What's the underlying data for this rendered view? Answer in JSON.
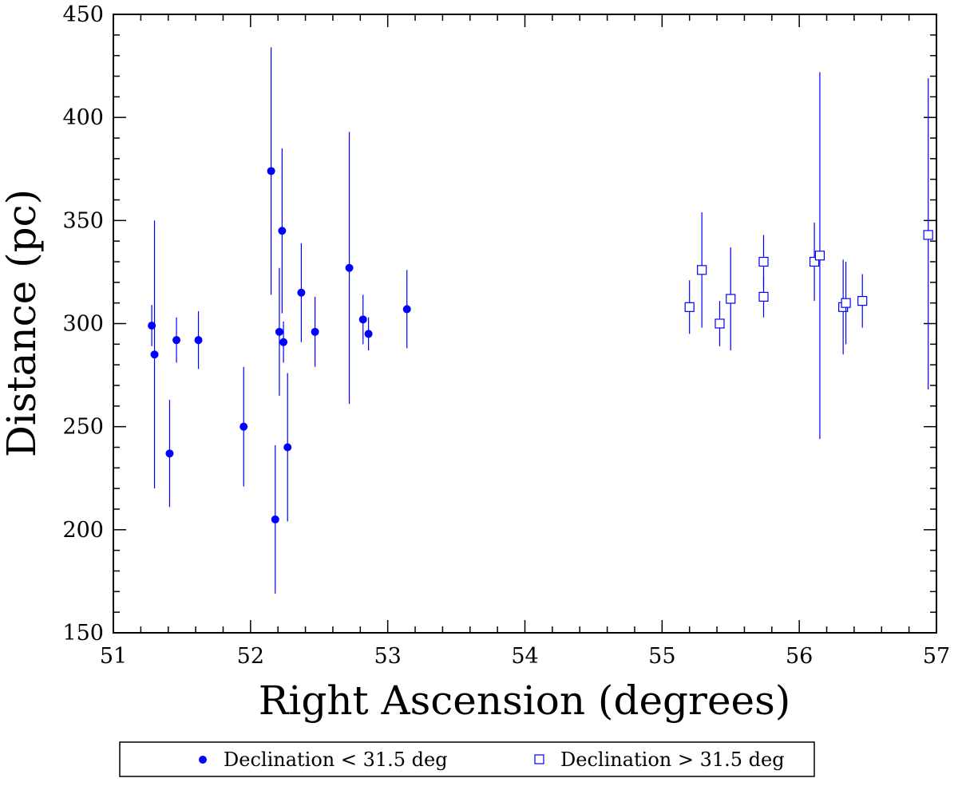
{
  "chart_data": {
    "type": "scatter",
    "title": "",
    "xlabel": "Right Ascension (degrees)",
    "ylabel": "Distance (pc)",
    "xlim": [
      51,
      57
    ],
    "ylim": [
      150,
      450
    ],
    "xticks": [
      51,
      52,
      53,
      54,
      55,
      56,
      57
    ],
    "yticks": [
      150,
      200,
      250,
      300,
      350,
      400,
      450
    ],
    "x_minor_step": 0.2,
    "y_minor_step": 10,
    "grid": false,
    "legend_position": "bottom-center",
    "colors": {
      "series": "#0000ff",
      "axis": "#000000"
    },
    "series": [
      {
        "name": "Declination < 31.5 deg",
        "marker": "filled-circle",
        "points": [
          {
            "x": 51.28,
            "y": 299,
            "ylo": 289,
            "yhi": 309
          },
          {
            "x": 51.3,
            "y": 285,
            "ylo": 220,
            "yhi": 350
          },
          {
            "x": 51.41,
            "y": 237,
            "ylo": 211,
            "yhi": 263
          },
          {
            "x": 51.46,
            "y": 292,
            "ylo": 281,
            "yhi": 303
          },
          {
            "x": 51.62,
            "y": 292,
            "ylo": 278,
            "yhi": 306
          },
          {
            "x": 51.95,
            "y": 250,
            "ylo": 221,
            "yhi": 279
          },
          {
            "x": 52.15,
            "y": 374,
            "ylo": 314,
            "yhi": 434
          },
          {
            "x": 52.18,
            "y": 205,
            "ylo": 169,
            "yhi": 241
          },
          {
            "x": 52.21,
            "y": 296,
            "ylo": 265,
            "yhi": 327
          },
          {
            "x": 52.23,
            "y": 345,
            "ylo": 305,
            "yhi": 385
          },
          {
            "x": 52.24,
            "y": 291,
            "ylo": 281,
            "yhi": 301
          },
          {
            "x": 52.27,
            "y": 240,
            "ylo": 204,
            "yhi": 276
          },
          {
            "x": 52.37,
            "y": 315,
            "ylo": 291,
            "yhi": 339
          },
          {
            "x": 52.47,
            "y": 296,
            "ylo": 279,
            "yhi": 313
          },
          {
            "x": 52.72,
            "y": 327,
            "ylo": 261,
            "yhi": 393
          },
          {
            "x": 52.82,
            "y": 302,
            "ylo": 290,
            "yhi": 314
          },
          {
            "x": 52.86,
            "y": 295,
            "ylo": 287,
            "yhi": 303
          },
          {
            "x": 53.14,
            "y": 307,
            "ylo": 288,
            "yhi": 326
          }
        ]
      },
      {
        "name": "Declination > 31.5 deg",
        "marker": "open-square",
        "points": [
          {
            "x": 55.2,
            "y": 308,
            "ylo": 295,
            "yhi": 321
          },
          {
            "x": 55.29,
            "y": 326,
            "ylo": 298,
            "yhi": 354
          },
          {
            "x": 55.42,
            "y": 300,
            "ylo": 289,
            "yhi": 311
          },
          {
            "x": 55.5,
            "y": 312,
            "ylo": 287,
            "yhi": 337
          },
          {
            "x": 55.74,
            "y": 330,
            "ylo": 317,
            "yhi": 343
          },
          {
            "x": 55.74,
            "y": 313,
            "ylo": 303,
            "yhi": 323
          },
          {
            "x": 56.11,
            "y": 330,
            "ylo": 311,
            "yhi": 349
          },
          {
            "x": 56.15,
            "y": 333,
            "ylo": 244,
            "yhi": 422
          },
          {
            "x": 56.32,
            "y": 308,
            "ylo": 285,
            "yhi": 331
          },
          {
            "x": 56.34,
            "y": 310,
            "ylo": 290,
            "yhi": 330
          },
          {
            "x": 56.46,
            "y": 311,
            "ylo": 298,
            "yhi": 324
          },
          {
            "x": 56.94,
            "y": 343,
            "ylo": 268,
            "yhi": 419
          }
        ]
      }
    ]
  }
}
